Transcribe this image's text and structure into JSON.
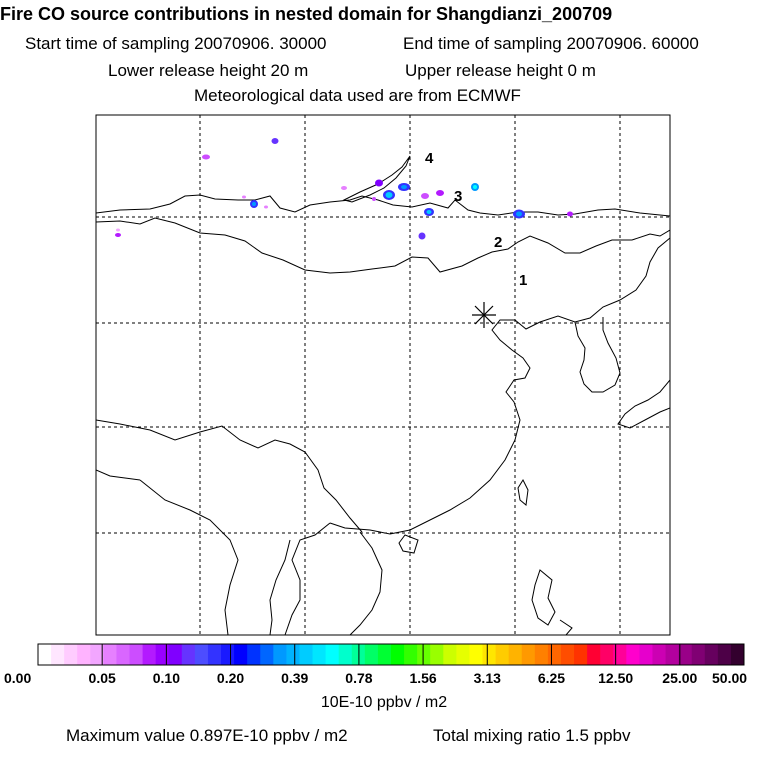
{
  "header": {
    "title": "Fire CO source contributions in nested domain for Shangdianzi_200709",
    "start_label": "Start time of sampling 20070906. 30000",
    "end_label": "End time of sampling 20070906. 60000",
    "lower_release": "Lower release height   20 m",
    "upper_release": "Upper release height    0 m",
    "met_data": "Meteorological data used are from ECMWF"
  },
  "map": {
    "station_marker": "asterisk-station",
    "region_labels": [
      "1",
      "2",
      "3",
      "4"
    ]
  },
  "colorbar": {
    "tick_labels": [
      "0.00",
      "0.05",
      "0.10",
      "0.20",
      "0.39",
      "0.78",
      "1.56",
      "3.13",
      "6.25",
      "12.50",
      "25.00",
      "50.00"
    ],
    "colors": [
      "#ffffff",
      "#ffe6ff",
      "#ffccff",
      "#ffb3ff",
      "#f2a6ff",
      "#e680ff",
      "#d966ff",
      "#cc4dff",
      "#b31aff",
      "#9900ff",
      "#8000ff",
      "#6633ff",
      "#4d4dff",
      "#3333ff",
      "#1a1aff",
      "#0000ff",
      "#0033ff",
      "#0066ff",
      "#0099ff",
      "#00b3ff",
      "#00ccff",
      "#00e6ff",
      "#00ffff",
      "#00ffcc",
      "#00ff99",
      "#00ff66",
      "#00ff33",
      "#00ff00",
      "#33ff00",
      "#66ff00",
      "#99ff00",
      "#ccff00",
      "#e6ff00",
      "#ffff00",
      "#ffe600",
      "#ffcc00",
      "#ffb300",
      "#ff9900",
      "#ff8000",
      "#ff6600",
      "#ff4d00",
      "#ff3300",
      "#ff0033",
      "#ff0066",
      "#ff0099",
      "#ff00cc",
      "#e600cc",
      "#cc00b3",
      "#b3009e",
      "#990088",
      "#800073",
      "#66005e",
      "#4d0047",
      "#33002e"
    ],
    "units": "10E-10 ppbv / m2"
  },
  "footer": {
    "max_value": "Maximum value  0.897E-10 ppbv / m2",
    "mixing_ratio": "Total mixing ratio        1.5 ppbv"
  }
}
